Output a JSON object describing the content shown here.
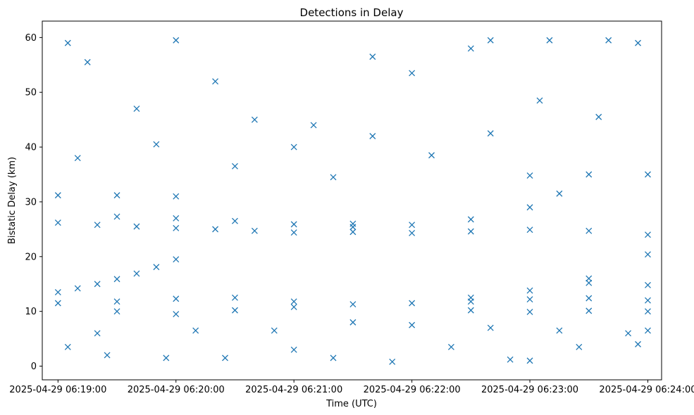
{
  "chart_data": {
    "type": "scatter",
    "title": "Detections in Delay",
    "xlabel": "Time (UTC)",
    "ylabel": "Bistatic Delay (km)",
    "marker": "x",
    "color": "#1f77b4",
    "xlim": [
      "2025-04-29 06:18:52",
      "2025-04-29 06:24:07"
    ],
    "ylim": [
      -2.5,
      63
    ],
    "x_ticks": [
      "2025-04-29 06:19:00",
      "2025-04-29 06:20:00",
      "2025-04-29 06:21:00",
      "2025-04-29 06:22:00",
      "2025-04-29 06:23:00",
      "2025-04-29 06:24:00"
    ],
    "y_ticks": [
      0,
      10,
      20,
      30,
      40,
      50,
      60
    ],
    "grid": false,
    "series": [
      {
        "points": [
          [
            "2025-04-29 06:19:00",
            13.5
          ],
          [
            "2025-04-29 06:19:10",
            14.2
          ],
          [
            "2025-04-29 06:19:20",
            15.0
          ],
          [
            "2025-04-29 06:19:30",
            15.9
          ],
          [
            "2025-04-29 06:19:40",
            16.9
          ],
          [
            "2025-04-29 06:19:50",
            18.1
          ],
          [
            "2025-04-29 06:20:00",
            19.5
          ],
          [
            "2025-04-29 06:19:00",
            26.2
          ],
          [
            "2025-04-29 06:19:20",
            25.8
          ],
          [
            "2025-04-29 06:19:40",
            25.5
          ],
          [
            "2025-04-29 06:20:00",
            25.2
          ],
          [
            "2025-04-29 06:20:20",
            25.0
          ],
          [
            "2025-04-29 06:20:40",
            24.7
          ],
          [
            "2025-04-29 06:21:00",
            24.4
          ],
          [
            "2025-04-29 06:19:30",
            27.3
          ],
          [
            "2025-04-29 06:20:00",
            27.0
          ],
          [
            "2025-04-29 06:20:30",
            26.5
          ],
          [
            "2025-04-29 06:21:00",
            25.9
          ],
          [
            "2025-04-29 06:21:30",
            25.4
          ],
          [
            "2025-04-29 06:19:00",
            31.2
          ],
          [
            "2025-04-29 06:19:30",
            31.2
          ],
          [
            "2025-04-29 06:20:00",
            31.0
          ],
          [
            "2025-04-29 06:19:00",
            11.5
          ],
          [
            "2025-04-29 06:19:30",
            11.8
          ],
          [
            "2025-04-29 06:20:00",
            12.3
          ],
          [
            "2025-04-29 06:20:30",
            12.5
          ],
          [
            "2025-04-29 06:21:00",
            11.8
          ],
          [
            "2025-04-29 06:21:30",
            11.3
          ],
          [
            "2025-04-29 06:22:00",
            11.5
          ],
          [
            "2025-04-29 06:22:30",
            12.5
          ],
          [
            "2025-04-29 06:23:00",
            13.8
          ],
          [
            "2025-04-29 06:23:30",
            16.0
          ],
          [
            "2025-04-29 06:24:00",
            20.4
          ],
          [
            "2025-04-29 06:19:30",
            10.0
          ],
          [
            "2025-04-29 06:20:00",
            9.5
          ],
          [
            "2025-04-29 06:20:30",
            10.2
          ],
          [
            "2025-04-29 06:21:00",
            10.8
          ],
          [
            "2025-04-29 06:21:30",
            24.5
          ],
          [
            "2025-04-29 06:22:00",
            24.3
          ],
          [
            "2025-04-29 06:22:30",
            24.6
          ],
          [
            "2025-04-29 06:23:00",
            24.9
          ],
          [
            "2025-04-29 06:23:30",
            24.7
          ],
          [
            "2025-04-29 06:24:00",
            24.0
          ],
          [
            "2025-04-29 06:21:30",
            26.0
          ],
          [
            "2025-04-29 06:22:00",
            25.8
          ],
          [
            "2025-04-29 06:22:30",
            26.8
          ],
          [
            "2025-04-29 06:23:00",
            29.0
          ],
          [
            "2025-04-29 06:23:15",
            31.5
          ],
          [
            "2025-04-29 06:23:00",
            34.8
          ],
          [
            "2025-04-29 06:23:30",
            35.0
          ],
          [
            "2025-04-29 06:24:00",
            35.0
          ],
          [
            "2025-04-29 06:22:30",
            11.8
          ],
          [
            "2025-04-29 06:23:00",
            12.2
          ],
          [
            "2025-04-29 06:23:30",
            12.4
          ],
          [
            "2025-04-29 06:24:00",
            12.0
          ],
          [
            "2025-04-29 06:22:30",
            10.2
          ],
          [
            "2025-04-29 06:23:00",
            9.9
          ],
          [
            "2025-04-29 06:23:30",
            10.1
          ],
          [
            "2025-04-29 06:24:00",
            10.0
          ],
          [
            "2025-04-29 06:23:30",
            15.2
          ],
          [
            "2025-04-29 06:24:00",
            14.8
          ],
          [
            "2025-04-29 06:24:00",
            6.5
          ],
          [
            "2025-04-29 06:19:05",
            59.0
          ],
          [
            "2025-04-29 06:19:15",
            55.5
          ],
          [
            "2025-04-29 06:19:40",
            47.0
          ],
          [
            "2025-04-29 06:20:00",
            59.5
          ],
          [
            "2025-04-29 06:20:20",
            52.0
          ],
          [
            "2025-04-29 06:20:40",
            45.0
          ],
          [
            "2025-04-29 06:21:10",
            44.0
          ],
          [
            "2025-04-29 06:21:40",
            56.5
          ],
          [
            "2025-04-29 06:22:00",
            53.5
          ],
          [
            "2025-04-29 06:22:30",
            58.0
          ],
          [
            "2025-04-29 06:22:40",
            59.5
          ],
          [
            "2025-04-29 06:23:10",
            59.5
          ],
          [
            "2025-04-29 06:23:40",
            59.5
          ],
          [
            "2025-04-29 06:23:55",
            59.0
          ],
          [
            "2025-04-29 06:19:10",
            38.0
          ],
          [
            "2025-04-29 06:19:50",
            40.5
          ],
          [
            "2025-04-29 06:20:30",
            36.5
          ],
          [
            "2025-04-29 06:21:00",
            40.0
          ],
          [
            "2025-04-29 06:21:20",
            34.5
          ],
          [
            "2025-04-29 06:21:40",
            42.0
          ],
          [
            "2025-04-29 06:22:10",
            38.5
          ],
          [
            "2025-04-29 06:22:40",
            42.5
          ],
          [
            "2025-04-29 06:23:05",
            48.5
          ],
          [
            "2025-04-29 06:23:35",
            45.5
          ],
          [
            "2025-04-29 06:19:05",
            3.5
          ],
          [
            "2025-04-29 06:19:25",
            2.0
          ],
          [
            "2025-04-29 06:19:55",
            1.5
          ],
          [
            "2025-04-29 06:20:25",
            1.5
          ],
          [
            "2025-04-29 06:21:00",
            3.0
          ],
          [
            "2025-04-29 06:21:20",
            1.5
          ],
          [
            "2025-04-29 06:21:50",
            0.8
          ],
          [
            "2025-04-29 06:22:20",
            3.5
          ],
          [
            "2025-04-29 06:22:50",
            1.2
          ],
          [
            "2025-04-29 06:23:00",
            1.0
          ],
          [
            "2025-04-29 06:23:25",
            3.5
          ],
          [
            "2025-04-29 06:23:55",
            4.0
          ],
          [
            "2025-04-29 06:19:20",
            6.0
          ],
          [
            "2025-04-29 06:20:10",
            6.5
          ],
          [
            "2025-04-29 06:20:50",
            6.5
          ],
          [
            "2025-04-29 06:21:30",
            8.0
          ],
          [
            "2025-04-29 06:22:00",
            7.5
          ],
          [
            "2025-04-29 06:22:40",
            7.0
          ],
          [
            "2025-04-29 06:23:15",
            6.5
          ],
          [
            "2025-04-29 06:23:50",
            6.0
          ]
        ]
      }
    ]
  }
}
